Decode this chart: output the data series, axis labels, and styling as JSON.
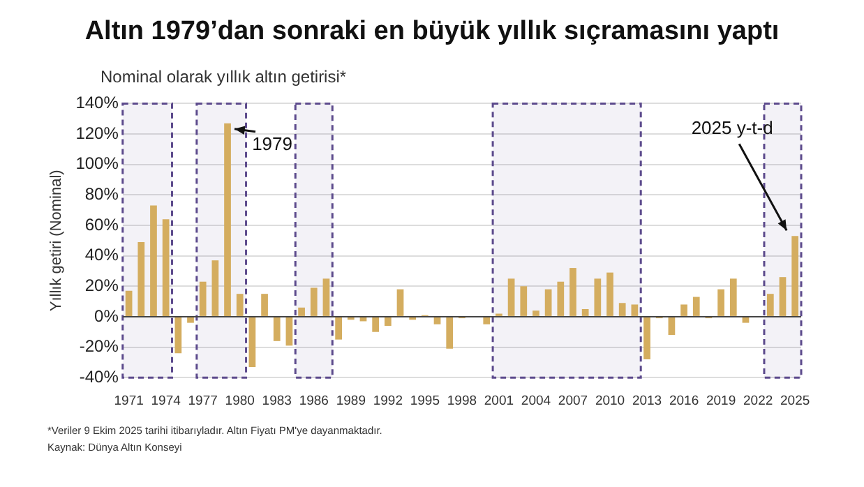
{
  "chart_data": {
    "type": "bar",
    "title": "Altın 1979’dan sonraki en büyük yıllık sıçramasını yaptı",
    "subtitle": "Nominal olarak yıllık altın getirisi*",
    "ylabel": "Yıllık getiri (Nominal)",
    "x": [
      1971,
      1972,
      1973,
      1974,
      1975,
      1976,
      1977,
      1978,
      1979,
      1980,
      1981,
      1982,
      1983,
      1984,
      1985,
      1986,
      1987,
      1988,
      1989,
      1990,
      1991,
      1992,
      1993,
      1994,
      1995,
      1996,
      1997,
      1998,
      1999,
      2000,
      2001,
      2002,
      2003,
      2004,
      2005,
      2006,
      2007,
      2008,
      2009,
      2010,
      2011,
      2012,
      2013,
      2014,
      2015,
      2016,
      2017,
      2018,
      2019,
      2020,
      2021,
      2022,
      2023,
      2024,
      2025
    ],
    "values": [
      17,
      49,
      73,
      64,
      -24,
      -4,
      23,
      37,
      127,
      15,
      -33,
      15,
      -16,
      -19,
      6,
      19,
      25,
      -15,
      -2,
      -3,
      -10,
      -6,
      18,
      -2,
      1,
      -5,
      -21,
      -1,
      0,
      -5,
      2,
      25,
      20,
      4,
      18,
      23,
      32,
      5,
      25,
      29,
      9,
      8,
      -28,
      -1,
      -12,
      8,
      13,
      -1,
      18,
      25,
      -4,
      0,
      15,
      26,
      53
    ],
    "color": "#d4ad5f",
    "xlim": [
      1970.5,
      2025.5
    ],
    "xticks": [
      1971,
      1974,
      1977,
      1980,
      1983,
      1986,
      1989,
      1992,
      1995,
      1998,
      2001,
      2004,
      2007,
      2010,
      2013,
      2016,
      2019,
      2022,
      2025
    ],
    "ylim": [
      -40,
      140
    ],
    "yticks": [
      {
        "value": -40,
        "label": "-40%"
      },
      {
        "value": -20,
        "label": "-20%"
      },
      {
        "value": 0,
        "label": "0%"
      },
      {
        "value": 20,
        "label": "20%"
      },
      {
        "value": 40,
        "label": "40%"
      },
      {
        "value": 60,
        "label": "60%"
      },
      {
        "value": 80,
        "label": "80%"
      },
      {
        "value": 100,
        "label": "100%"
      },
      {
        "value": 120,
        "label": "120%"
      },
      {
        "value": 140,
        "label": "140%"
      }
    ],
    "grid": "y",
    "legend": false,
    "bands": [
      {
        "axis": "x",
        "from": 1970.5,
        "to": 1974.5,
        "color": "#5c4a8c"
      },
      {
        "axis": "x",
        "from": 1976.5,
        "to": 1980.5,
        "color": "#5c4a8c"
      },
      {
        "axis": "x",
        "from": 1984.5,
        "to": 1987.5,
        "color": "#5c4a8c"
      },
      {
        "axis": "x",
        "from": 2000.5,
        "to": 2012.5,
        "color": "#5c4a8c"
      },
      {
        "axis": "x",
        "from": 2022.5,
        "to": 2025.5,
        "color": "#5c4a8c"
      }
    ],
    "annotations": [
      {
        "text": "1979",
        "x": 1979,
        "y": 127
      },
      {
        "text": "2025 y-t-d",
        "x": 2025,
        "y": 53
      },
      "*Veriler 9 Ekim 2025 tarihi itibarıyladır. Altın Fiyatı PM'ye dayanmaktadır.",
      "Kaynak: Dünya Altın Konseyi"
    ]
  }
}
